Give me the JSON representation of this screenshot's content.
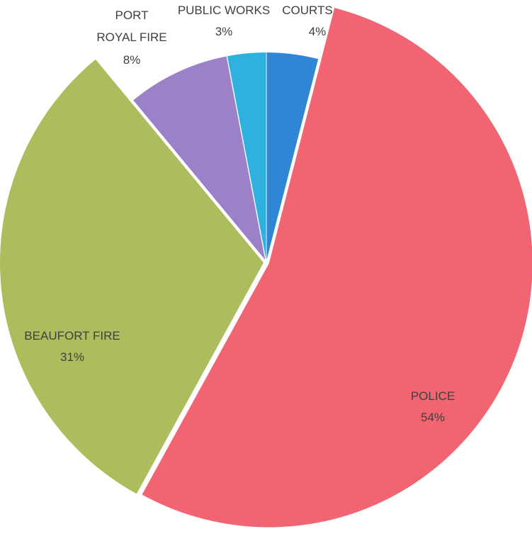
{
  "chart_data": {
    "type": "pie",
    "exploded": true,
    "slices": [
      {
        "label": "COURTS",
        "percent_label": "4%",
        "value": 4,
        "color": "#2e86d4"
      },
      {
        "label": "POLICE",
        "percent_label": "54%",
        "value": 54,
        "color": "#f16471"
      },
      {
        "label": "BEAUFORT FIRE",
        "percent_label": "31%",
        "value": 31,
        "color": "#abbd5d"
      },
      {
        "label": "PORT ROYAL FIRE",
        "percent_label": "8%",
        "value": 8,
        "color": "#9c80c8"
      },
      {
        "label": "PUBLIC WORKS",
        "percent_label": "3%",
        "value": 3,
        "color": "#2fb0de"
      }
    ]
  }
}
